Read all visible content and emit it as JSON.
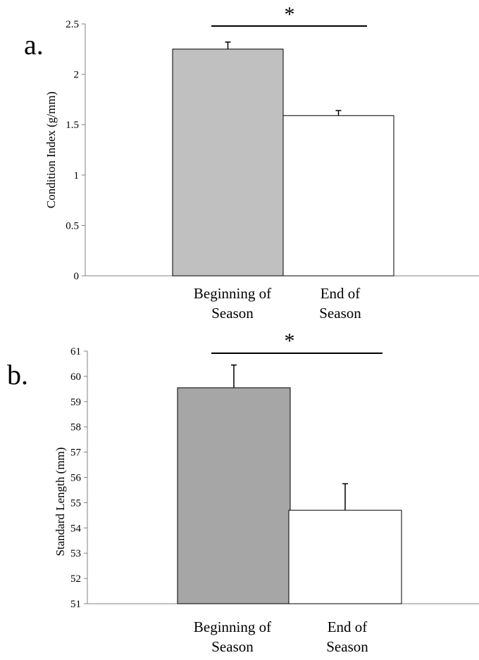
{
  "chart_data": [
    {
      "type": "bar",
      "panel_label": "a.",
      "categories": [
        "Beginning of\nSeason",
        "End of\nSeason"
      ],
      "values": [
        2.25,
        1.59
      ],
      "errors": [
        0.07,
        0.05
      ],
      "colors": [
        "#c0c0c0",
        "#ffffff"
      ],
      "ylabel": "Condition Index (g/mm)",
      "ylim": [
        0,
        2.5
      ],
      "yticks": [
        "0",
        "0.5",
        "1",
        "1.5",
        "2",
        "2.5"
      ],
      "significance": "*",
      "grid": false
    },
    {
      "type": "bar",
      "panel_label": "b.",
      "categories": [
        "Beginning of\nSeason",
        "End of\nSeason"
      ],
      "values": [
        59.55,
        54.7
      ],
      "errors": [
        0.9,
        1.05
      ],
      "colors": [
        "#a6a6a6",
        "#ffffff"
      ],
      "ylabel": "Standard Length (mm)",
      "ylim": [
        51,
        61
      ],
      "yticks": [
        "51",
        "52",
        "53",
        "54",
        "55",
        "56",
        "57",
        "58",
        "59",
        "60",
        "61"
      ],
      "significance": "*",
      "grid": false
    }
  ]
}
